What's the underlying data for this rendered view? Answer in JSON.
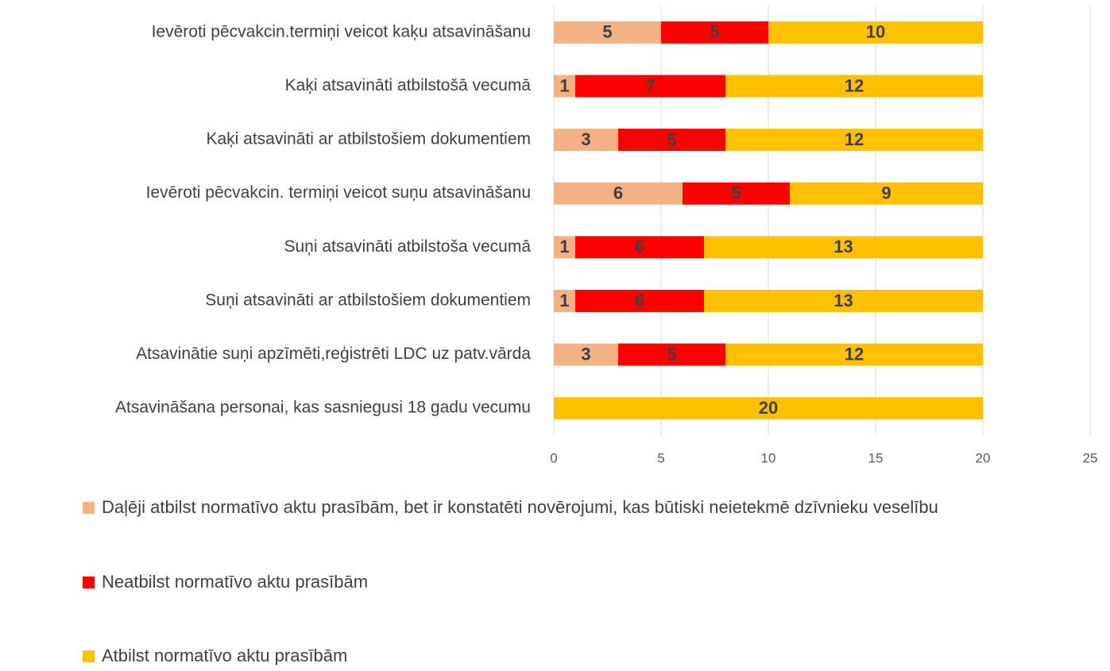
{
  "chart_data": {
    "type": "stacked_bar_horizontal",
    "categories": [
      "Ievēroti pēcvakcin.termiņi veicot kaķu atsavināšanu",
      "Kaķi atsavināti atbilstošā  vecumā",
      "Kaķi atsavināti ar atbilstošiem dokumentiem",
      "Ievēroti pēcvakcin. termiņi veicot suņu atsavināšanu",
      "Suņi atsavināti atbilstoša vecumā",
      "Suņi atsavināti ar atbilstošiem dokumentiem",
      "Atsavinātie suņi apzīmēti,reģistrēti LDC uz patv.vārda",
      "Atsavināšana personai, kas sasniegusi 18 gadu vecumu"
    ],
    "series": [
      {
        "name": "Daļēji atbilst normatīvo aktu prasībām, bet ir konstatēti novērojumi, kas būtiski neietekmē dzīvnieku veselību",
        "color": "#f4b183",
        "values": [
          5,
          1,
          3,
          6,
          1,
          1,
          3,
          0
        ]
      },
      {
        "name": "Neatbilst normatīvo aktu prasībām",
        "color": "#ff0000",
        "values": [
          5,
          7,
          5,
          5,
          6,
          6,
          5,
          0
        ]
      },
      {
        "name": "Atbilst normatīvo aktu prasībām",
        "color": "#ffc000",
        "values": [
          10,
          12,
          12,
          9,
          13,
          13,
          12,
          20
        ]
      }
    ],
    "xlim": [
      0,
      25
    ],
    "xticks": [
      0,
      5,
      10,
      15,
      20,
      25
    ],
    "grid": true
  }
}
